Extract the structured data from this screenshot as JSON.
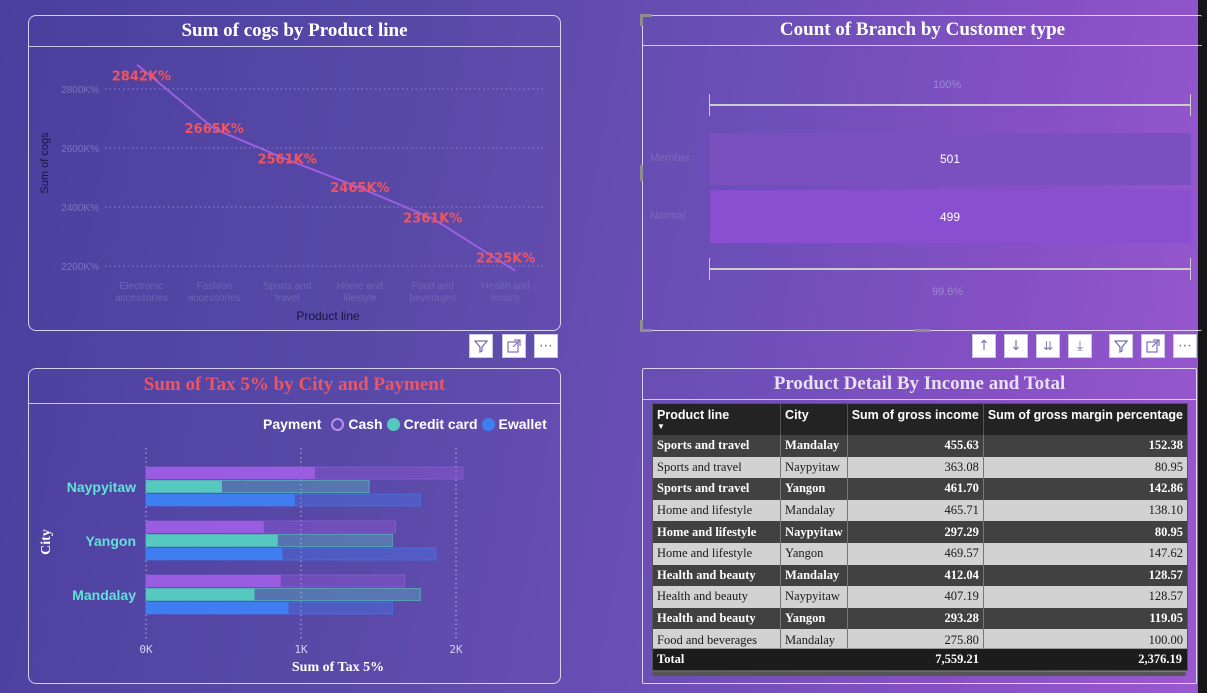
{
  "cogs_chart": {
    "title": "Sum of cogs by Product line",
    "ylabel": "Sum of cogs",
    "xlabel": "Product line",
    "y_ticks": [
      "2800K%",
      "2600K%",
      "2400K%",
      "2200K%"
    ],
    "categories": [
      "Electronic accessories",
      "Fashion accessories",
      "Sports and travel",
      "Home and lifestyle",
      "Food and beverages",
      "Health and beauty"
    ],
    "data_labels": [
      "2842K%",
      "2665K%",
      "2561K%",
      "2465K%",
      "2361K%",
      "2225K%"
    ]
  },
  "branch_chart": {
    "title": "Count of Branch by Customer type",
    "top_pct": "100%",
    "bottom_pct": "99.6%",
    "bars": [
      {
        "label": "Member",
        "value": "501"
      },
      {
        "label": "Normal",
        "value": "499"
      }
    ]
  },
  "tax_chart": {
    "title": "Sum of Tax 5% by City and Payment",
    "legend_title": "Payment",
    "legend": [
      "Cash",
      "Credit card",
      "Ewallet"
    ],
    "ylabel": "City",
    "xlabel": "Sum of Tax 5%",
    "x_ticks": [
      "0K",
      "1K",
      "2K"
    ],
    "cities": [
      "Naypyitaw",
      "Yangon",
      "Mandalay"
    ]
  },
  "table": {
    "title": "Product Detail By Income and Total",
    "headers": [
      "Product line",
      "City",
      "Sum of gross income",
      "Sum of gross margin percentage"
    ],
    "rows": [
      [
        "Sports and travel",
        "Mandalay",
        "455.63",
        "152.38"
      ],
      [
        "Sports and travel",
        "Naypyitaw",
        "363.08",
        "80.95"
      ],
      [
        "Sports and travel",
        "Yangon",
        "461.70",
        "142.86"
      ],
      [
        "Home and lifestyle",
        "Mandalay",
        "465.71",
        "138.10"
      ],
      [
        "Home and lifestyle",
        "Naypyitaw",
        "297.29",
        "80.95"
      ],
      [
        "Home and lifestyle",
        "Yangon",
        "469.57",
        "147.62"
      ],
      [
        "Health and beauty",
        "Mandalay",
        "412.04",
        "128.57"
      ],
      [
        "Health and beauty",
        "Naypyitaw",
        "407.19",
        "128.57"
      ],
      [
        "Health and beauty",
        "Yangon",
        "293.28",
        "119.05"
      ],
      [
        "Food and beverages",
        "Mandalay",
        "275.80",
        "100.00"
      ]
    ],
    "total": [
      "Total",
      "",
      "7,559.21",
      "2,376.19"
    ]
  },
  "toolbar": {
    "filter_icon": "filter-icon",
    "focus_icon": "focus-mode-icon",
    "more_icon": "more-options-icon",
    "sort_icons": [
      "drill-up-icon",
      "drill-down-icon",
      "expand-all-icon",
      "expand-hierarchy-icon"
    ]
  },
  "colors": {
    "data_label": "#f0555f",
    "tax_title": "#f0555f",
    "city_label": "#5fe3d8",
    "cash": "#9a5ce0",
    "credit_card": "#55c8c0",
    "ewallet": "#3f7ef0"
  },
  "chart_data": [
    {
      "type": "line",
      "title": "Sum of cogs by Product line",
      "xlabel": "Product line",
      "ylabel": "Sum of cogs",
      "categories": [
        "Electronic accessories",
        "Fashion accessories",
        "Sports and travel",
        "Home and lifestyle",
        "Food and beverages",
        "Health and beauty"
      ],
      "values": [
        2842,
        2665,
        2561,
        2465,
        2361,
        2225
      ],
      "ylim": [
        2200,
        2800
      ],
      "grid": true
    },
    {
      "type": "bar",
      "title": "Count of Branch by Customer type",
      "categories": [
        "Member",
        "Normal"
      ],
      "values": [
        501,
        499
      ]
    },
    {
      "type": "bar",
      "title": "Sum of Tax 5% by City and Payment",
      "xlabel": "Sum of Tax 5%",
      "ylabel": "City",
      "categories": [
        "Naypyitaw",
        "Yangon",
        "Mandalay"
      ],
      "series": [
        {
          "name": "Cash",
          "values": [
            1090,
            760,
            870
          ]
        },
        {
          "name": "Credit card",
          "values": [
            490,
            850,
            700
          ]
        },
        {
          "name": "Ewallet",
          "values": [
            960,
            880,
            920
          ]
        }
      ],
      "xlim": [
        0,
        2000
      ],
      "legend": "top-right"
    }
  ]
}
